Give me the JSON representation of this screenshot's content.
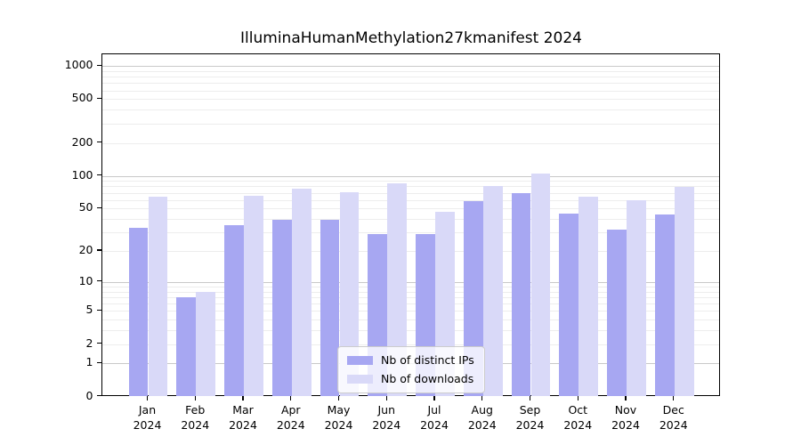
{
  "chart_data": {
    "type": "bar",
    "title": "IlluminaHumanMethylation27kmanifest 2024",
    "categories": [
      {
        "month": "Jan",
        "year": "2024"
      },
      {
        "month": "Feb",
        "year": "2024"
      },
      {
        "month": "Mar",
        "year": "2024"
      },
      {
        "month": "Apr",
        "year": "2024"
      },
      {
        "month": "May",
        "year": "2024"
      },
      {
        "month": "Jun",
        "year": "2024"
      },
      {
        "month": "Jul",
        "year": "2024"
      },
      {
        "month": "Aug",
        "year": "2024"
      },
      {
        "month": "Sep",
        "year": "2024"
      },
      {
        "month": "Oct",
        "year": "2024"
      },
      {
        "month": "Nov",
        "year": "2024"
      },
      {
        "month": "Dec",
        "year": "2024"
      }
    ],
    "series": [
      {
        "name": "Nb of distinct IPs",
        "color": "#a7a7f2",
        "values": [
          33,
          7,
          35,
          39,
          39,
          29,
          29,
          59,
          69,
          45,
          32,
          44
        ]
      },
      {
        "name": "Nb of downloads",
        "color": "#d9d9f8",
        "values": [
          64,
          8,
          66,
          76,
          71,
          86,
          47,
          80,
          105,
          64,
          60,
          79
        ]
      }
    ],
    "xlabel": "",
    "ylabel": "",
    "y_ticks": [
      0,
      1,
      2,
      5,
      10,
      20,
      50,
      100,
      200,
      500,
      1000
    ],
    "y_scale": "log10(value+1)",
    "ylim": [
      0,
      1280
    ],
    "grid": {
      "on": true,
      "major_at": [
        1,
        10,
        100,
        1000
      ],
      "minor_multiples": [
        2,
        3,
        4,
        5,
        6,
        7,
        8,
        9
      ]
    },
    "legend_position": "lower center inside plot",
    "colors": {
      "bar_ips": "#a7a7f2",
      "bar_downloads": "#d9d9f8",
      "grid_major": "#c9c9c9",
      "grid_minor": "#ededed",
      "axis": "#000000",
      "background": "#ffffff"
    }
  }
}
